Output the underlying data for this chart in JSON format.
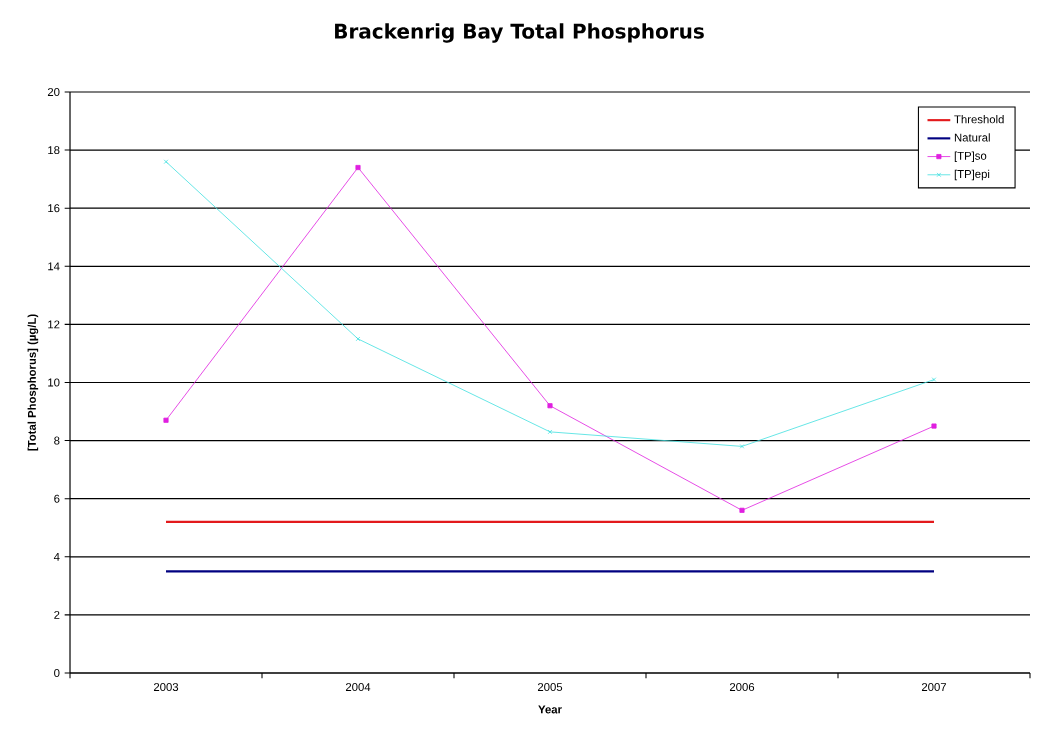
{
  "chart_data": {
    "type": "line",
    "title": "Brackenrig Bay Total Phosphorus",
    "xlabel": "Year",
    "ylabel": "[Total Phosphorus] (µg/L)",
    "categories": [
      "2003",
      "2004",
      "2005",
      "2006",
      "2007"
    ],
    "series": [
      {
        "name": "Threshold",
        "color": "#e31a1c",
        "values": [
          5.2,
          5.2,
          5.2,
          5.2,
          5.2
        ],
        "marker": "none"
      },
      {
        "name": "Natural",
        "color": "#000080",
        "values": [
          3.5,
          3.5,
          3.5,
          3.5,
          3.5
        ],
        "marker": "none"
      },
      {
        "name": "[TP]so",
        "color": "#e020e0",
        "values": [
          8.7,
          17.4,
          9.2,
          5.6,
          8.5
        ],
        "marker": "square"
      },
      {
        "name": "[TP]epi",
        "color": "#40e0e0",
        "values": [
          17.6,
          11.5,
          8.3,
          7.8,
          10.1
        ],
        "marker": "cross"
      }
    ],
    "ylim": [
      0,
      20
    ],
    "yticks": [
      0,
      2,
      4,
      6,
      8,
      10,
      12,
      14,
      16,
      18,
      20
    ],
    "grid": "y",
    "legend": "top right"
  }
}
